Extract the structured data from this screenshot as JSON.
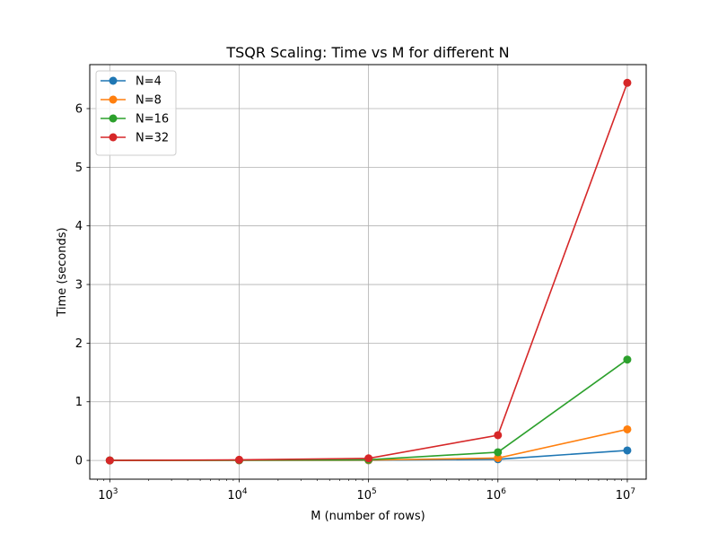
{
  "chart_data": {
    "type": "line",
    "title": "TSQR Scaling: Time vs M for different N",
    "xlabel": "M (number of rows)",
    "ylabel": "Time (seconds)",
    "xscale": "log",
    "xlim": [
      700,
      14000000
    ],
    "ylim": [
      -0.32,
      6.75
    ],
    "grid": true,
    "legend_position": "top-left",
    "x": [
      1000,
      10000,
      100000,
      1000000,
      10000000
    ],
    "x_ticks": [
      {
        "base": "10",
        "exp": "3"
      },
      {
        "base": "10",
        "exp": "4"
      },
      {
        "base": "10",
        "exp": "5"
      },
      {
        "base": "10",
        "exp": "6"
      },
      {
        "base": "10",
        "exp": "7"
      }
    ],
    "y_ticks": [
      "0",
      "1",
      "2",
      "3",
      "4",
      "5",
      "6"
    ],
    "series": [
      {
        "name": "N=4",
        "color": "#1f77b4",
        "values": [
          0.0,
          0.002,
          0.003,
          0.02,
          0.17
        ]
      },
      {
        "name": "N=8",
        "color": "#ff7f0e",
        "values": [
          0.0,
          0.003,
          0.005,
          0.04,
          0.53
        ]
      },
      {
        "name": "N=16",
        "color": "#2ca02c",
        "values": [
          0.0,
          0.005,
          0.012,
          0.14,
          1.72
        ]
      },
      {
        "name": "N=32",
        "color": "#d62728",
        "values": [
          0.0,
          0.01,
          0.035,
          0.43,
          6.44
        ]
      }
    ]
  }
}
